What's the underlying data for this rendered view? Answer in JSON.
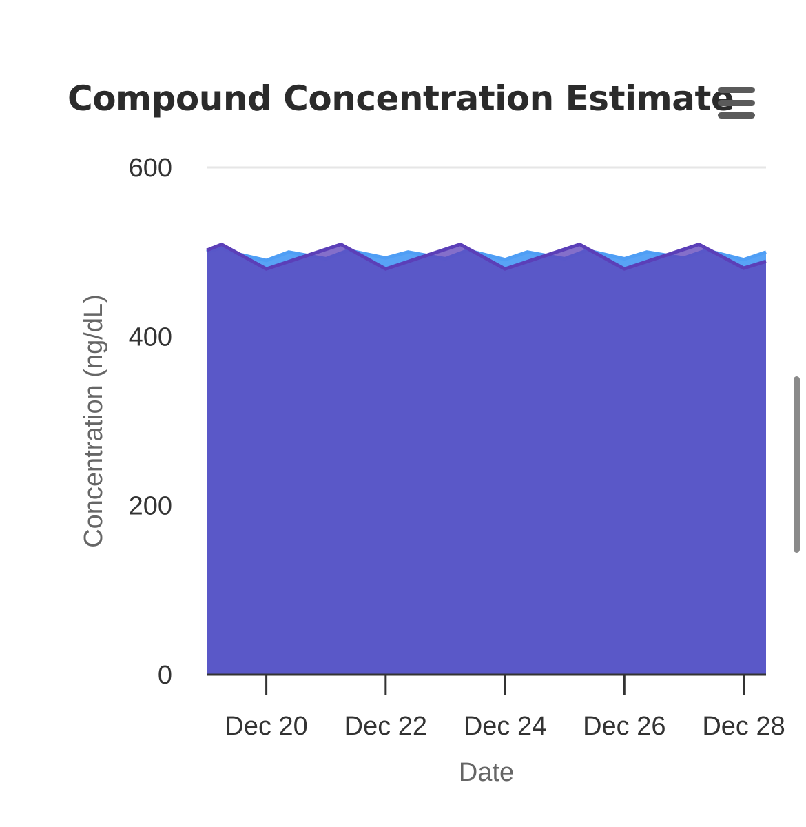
{
  "header": {
    "title": "Compound Concentration Estimate",
    "menu_icon": "hamburger-menu-icon"
  },
  "chart_data": {
    "type": "area",
    "title": "Compound Concentration Estimate",
    "xlabel": "Date",
    "ylabel": "Concentration (ng/dL)",
    "ylim": [
      0,
      600
    ],
    "xlim": [
      "2024-12-19",
      "2024-12-28T09:00"
    ],
    "y_ticks": [
      0,
      200,
      400,
      600
    ],
    "x_ticks": [
      "Dec 20",
      "Dec 22",
      "Dec 24",
      "Dec 26",
      "Dec 28"
    ],
    "x_tick_dates": [
      "2024-12-20",
      "2024-12-22",
      "2024-12-24",
      "2024-12-26",
      "2024-12-28"
    ],
    "grid": "horizontal-top",
    "series": [
      {
        "color": "#4f9ef5",
        "points": [
          [
            "2024-12-19T00:00",
            500
          ],
          [
            "2024-12-19T06:00",
            505
          ],
          [
            "2024-12-19T12:00",
            498
          ],
          [
            "2024-12-20T00:00",
            490
          ],
          [
            "2024-12-20T09:00",
            500
          ],
          [
            "2024-12-21T00:00",
            492
          ],
          [
            "2024-12-21T09:00",
            502
          ],
          [
            "2024-12-22T00:00",
            493
          ],
          [
            "2024-12-22T09:00",
            500
          ],
          [
            "2024-12-23T00:00",
            492
          ],
          [
            "2024-12-23T09:00",
            502
          ],
          [
            "2024-12-24T00:00",
            491
          ],
          [
            "2024-12-24T09:00",
            500
          ],
          [
            "2024-12-25T00:00",
            492
          ],
          [
            "2024-12-25T09:00",
            502
          ],
          [
            "2024-12-26T00:00",
            492
          ],
          [
            "2024-12-26T09:00",
            500
          ],
          [
            "2024-12-27T00:00",
            493
          ],
          [
            "2024-12-27T09:00",
            502
          ],
          [
            "2024-12-28T00:00",
            491
          ],
          [
            "2024-12-28T09:00",
            500
          ]
        ]
      },
      {
        "color": "#5b3fb8",
        "points": [
          [
            "2024-12-19T00:00",
            502
          ],
          [
            "2024-12-19T06:00",
            509
          ],
          [
            "2024-12-20T00:00",
            480
          ],
          [
            "2024-12-21T06:00",
            509
          ],
          [
            "2024-12-22T00:00",
            480
          ],
          [
            "2024-12-23T06:00",
            509
          ],
          [
            "2024-12-24T00:00",
            480
          ],
          [
            "2024-12-25T06:00",
            509
          ],
          [
            "2024-12-26T00:00",
            480
          ],
          [
            "2024-12-27T06:00",
            509
          ],
          [
            "2024-12-28T00:00",
            481
          ],
          [
            "2024-12-28T09:00",
            489
          ]
        ]
      }
    ]
  }
}
